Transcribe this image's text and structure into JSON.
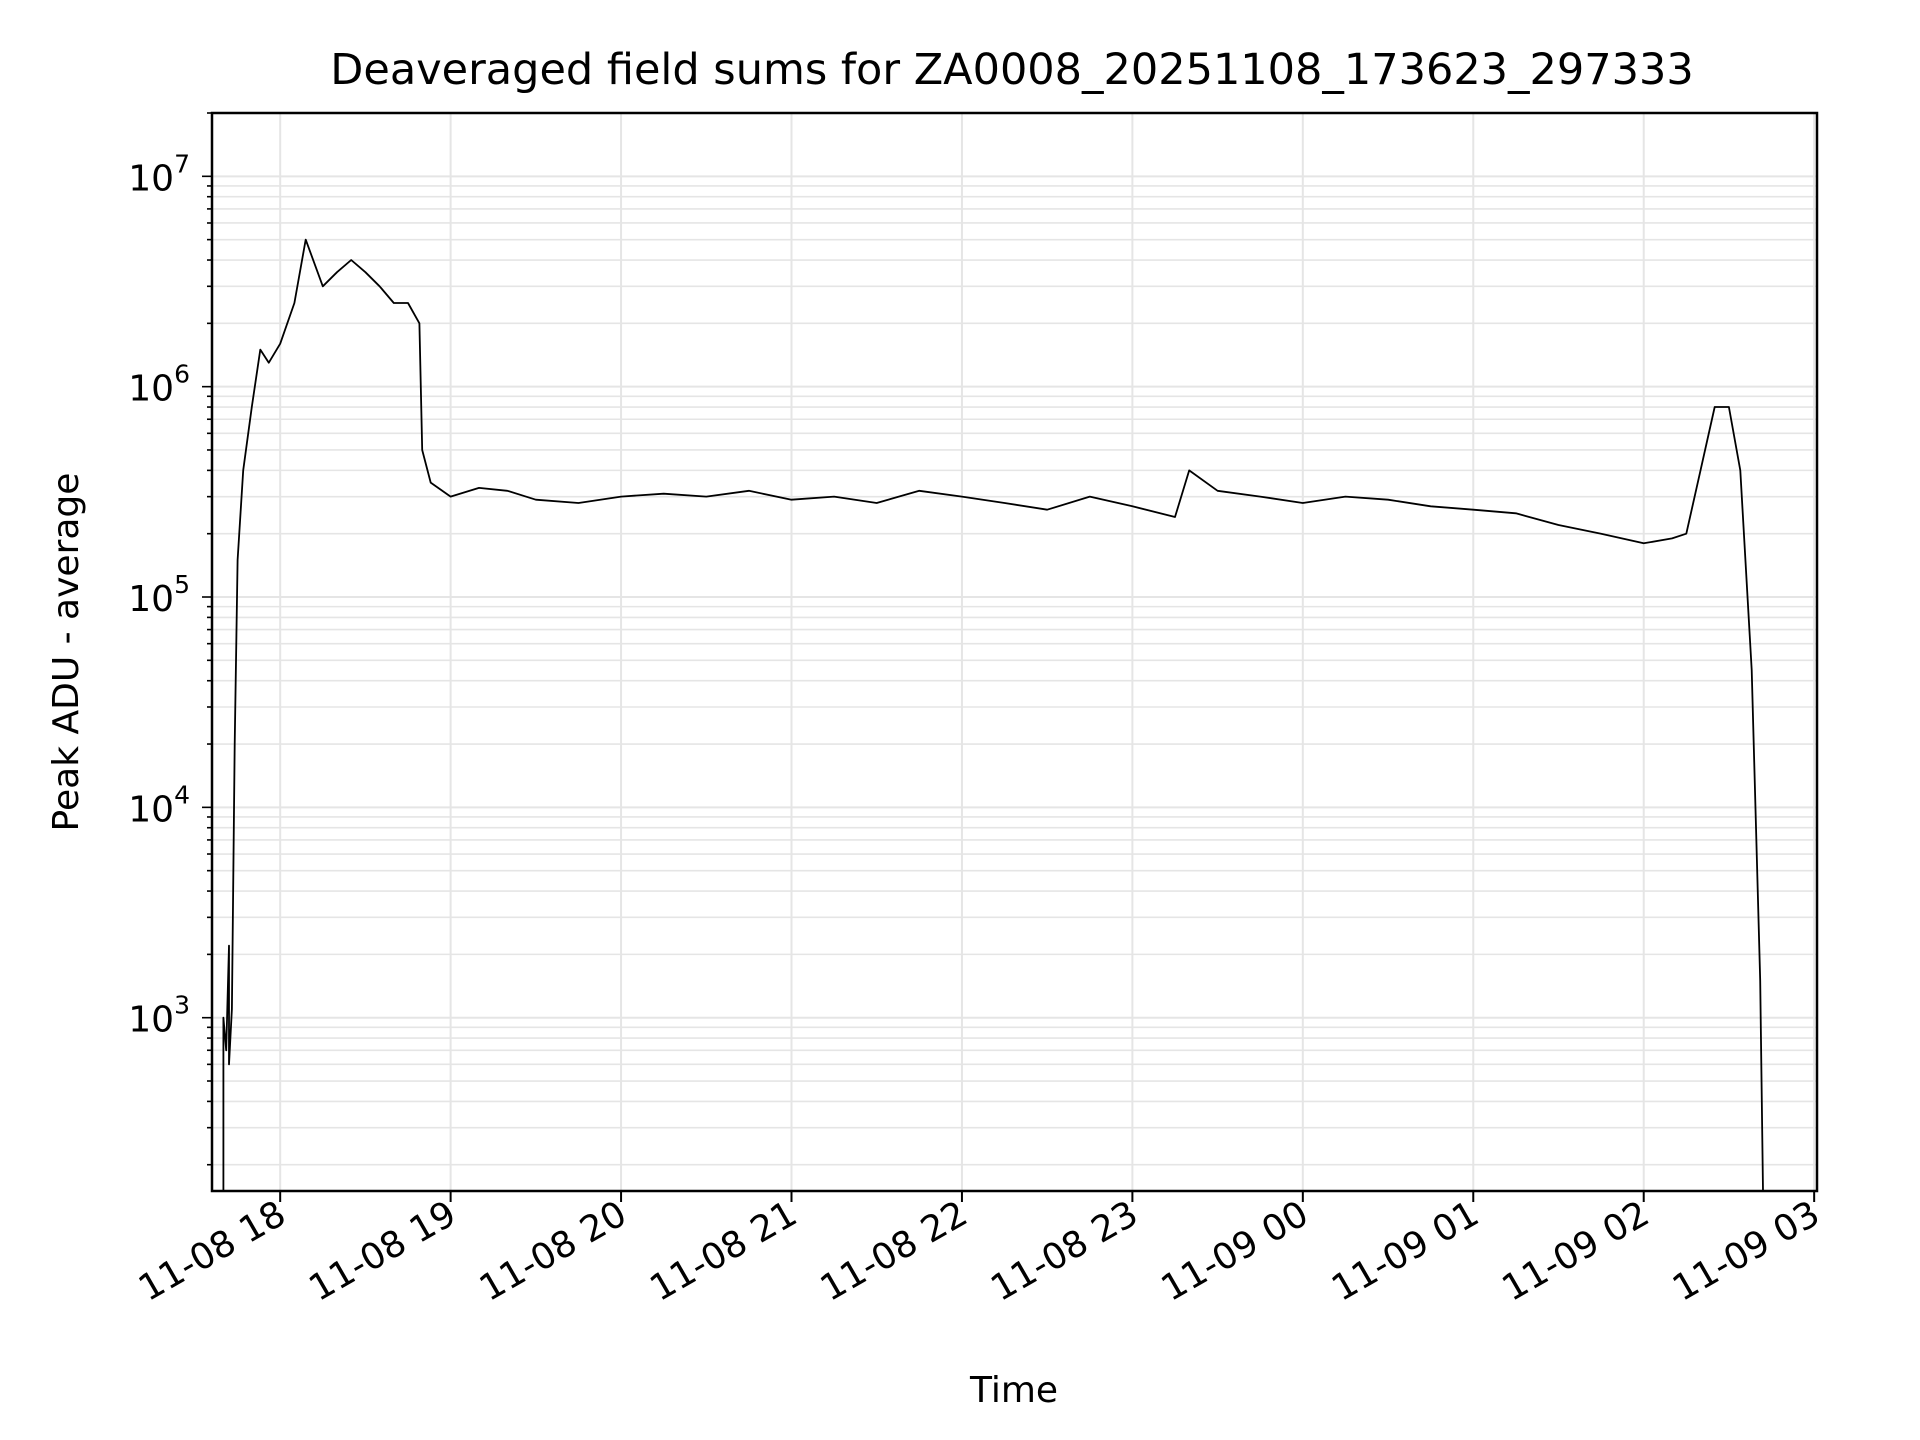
{
  "chart_data": {
    "type": "line",
    "title": "Deaveraged field sums for ZA0008_20251108_173623_297333",
    "xlabel": "Time",
    "ylabel": "Peak ADU - average",
    "yscale": "log",
    "xlim": [
      "2025-11-08 17:36",
      "2025-11-09 03:01"
    ],
    "ylim": [
      150,
      20000000
    ],
    "grid": true,
    "line_color": "#000000",
    "grid_color": "#e5e5e5",
    "x_ticks": [
      {
        "time": "2025-11-08 18:00",
        "label": "11-08 18"
      },
      {
        "time": "2025-11-08 19:00",
        "label": "11-08 19"
      },
      {
        "time": "2025-11-08 20:00",
        "label": "11-08 20"
      },
      {
        "time": "2025-11-08 21:00",
        "label": "11-08 21"
      },
      {
        "time": "2025-11-08 22:00",
        "label": "11-08 22"
      },
      {
        "time": "2025-11-08 23:00",
        "label": "11-08 23"
      },
      {
        "time": "2025-11-09 00:00",
        "label": "11-09 00"
      },
      {
        "time": "2025-11-09 01:00",
        "label": "11-09 01"
      },
      {
        "time": "2025-11-09 02:00",
        "label": "11-09 02"
      },
      {
        "time": "2025-11-09 03:00",
        "label": "11-09 03"
      }
    ],
    "y_ticks": [
      {
        "value": 1000,
        "base": "10",
        "exp": "3"
      },
      {
        "value": 10000,
        "base": "10",
        "exp": "4"
      },
      {
        "value": 100000,
        "base": "10",
        "exp": "5"
      },
      {
        "value": 1000000,
        "base": "10",
        "exp": "6"
      },
      {
        "value": 10000000,
        "base": "10",
        "exp": "7"
      }
    ],
    "series": [
      {
        "points": [
          [
            "2025-11-08 17:40",
            150
          ],
          [
            "2025-11-08 17:40",
            1000
          ],
          [
            "2025-11-08 17:41",
            700
          ],
          [
            "2025-11-08 17:42",
            2200
          ],
          [
            "2025-11-08 17:42",
            600
          ],
          [
            "2025-11-08 17:43",
            1100
          ],
          [
            "2025-11-08 17:44",
            20000
          ],
          [
            "2025-11-08 17:45",
            150000
          ],
          [
            "2025-11-08 17:47",
            400000
          ],
          [
            "2025-11-08 17:50",
            800000
          ],
          [
            "2025-11-08 17:53",
            1500000
          ],
          [
            "2025-11-08 17:56",
            1300000
          ],
          [
            "2025-11-08 18:00",
            1600000
          ],
          [
            "2025-11-08 18:05",
            2500000
          ],
          [
            "2025-11-08 18:09",
            5000000
          ],
          [
            "2025-11-08 18:15",
            3000000
          ],
          [
            "2025-11-08 18:20",
            3500000
          ],
          [
            "2025-11-08 18:25",
            4000000
          ],
          [
            "2025-11-08 18:30",
            3500000
          ],
          [
            "2025-11-08 18:35",
            3000000
          ],
          [
            "2025-11-08 18:40",
            2500000
          ],
          [
            "2025-11-08 18:45",
            2500000
          ],
          [
            "2025-11-08 18:49",
            2000000
          ],
          [
            "2025-11-08 18:50",
            500000
          ],
          [
            "2025-11-08 18:53",
            350000
          ],
          [
            "2025-11-08 19:00",
            300000
          ],
          [
            "2025-11-08 19:10",
            330000
          ],
          [
            "2025-11-08 19:20",
            320000
          ],
          [
            "2025-11-08 19:30",
            290000
          ],
          [
            "2025-11-08 19:45",
            280000
          ],
          [
            "2025-11-08 20:00",
            300000
          ],
          [
            "2025-11-08 20:15",
            310000
          ],
          [
            "2025-11-08 20:30",
            300000
          ],
          [
            "2025-11-08 20:45",
            320000
          ],
          [
            "2025-11-08 21:00",
            290000
          ],
          [
            "2025-11-08 21:15",
            300000
          ],
          [
            "2025-11-08 21:30",
            280000
          ],
          [
            "2025-11-08 21:45",
            320000
          ],
          [
            "2025-11-08 22:00",
            300000
          ],
          [
            "2025-11-08 22:15",
            280000
          ],
          [
            "2025-11-08 22:30",
            260000
          ],
          [
            "2025-11-08 22:45",
            300000
          ],
          [
            "2025-11-08 23:00",
            270000
          ],
          [
            "2025-11-08 23:15",
            240000
          ],
          [
            "2025-11-08 23:20",
            400000
          ],
          [
            "2025-11-08 23:30",
            320000
          ],
          [
            "2025-11-08 23:45",
            300000
          ],
          [
            "2025-11-09 00:00",
            280000
          ],
          [
            "2025-11-09 00:15",
            300000
          ],
          [
            "2025-11-09 00:30",
            290000
          ],
          [
            "2025-11-09 00:45",
            270000
          ],
          [
            "2025-11-09 01:00",
            260000
          ],
          [
            "2025-11-09 01:15",
            250000
          ],
          [
            "2025-11-09 01:30",
            220000
          ],
          [
            "2025-11-09 01:45",
            200000
          ],
          [
            "2025-11-09 02:00",
            180000
          ],
          [
            "2025-11-09 02:10",
            190000
          ],
          [
            "2025-11-09 02:15",
            200000
          ],
          [
            "2025-11-09 02:20",
            400000
          ],
          [
            "2025-11-09 02:25",
            800000
          ],
          [
            "2025-11-09 02:30",
            800000
          ],
          [
            "2025-11-09 02:34",
            400000
          ],
          [
            "2025-11-09 02:38",
            45000
          ],
          [
            "2025-11-09 02:41",
            1500
          ],
          [
            "2025-11-09 02:42",
            150
          ]
        ]
      }
    ]
  }
}
